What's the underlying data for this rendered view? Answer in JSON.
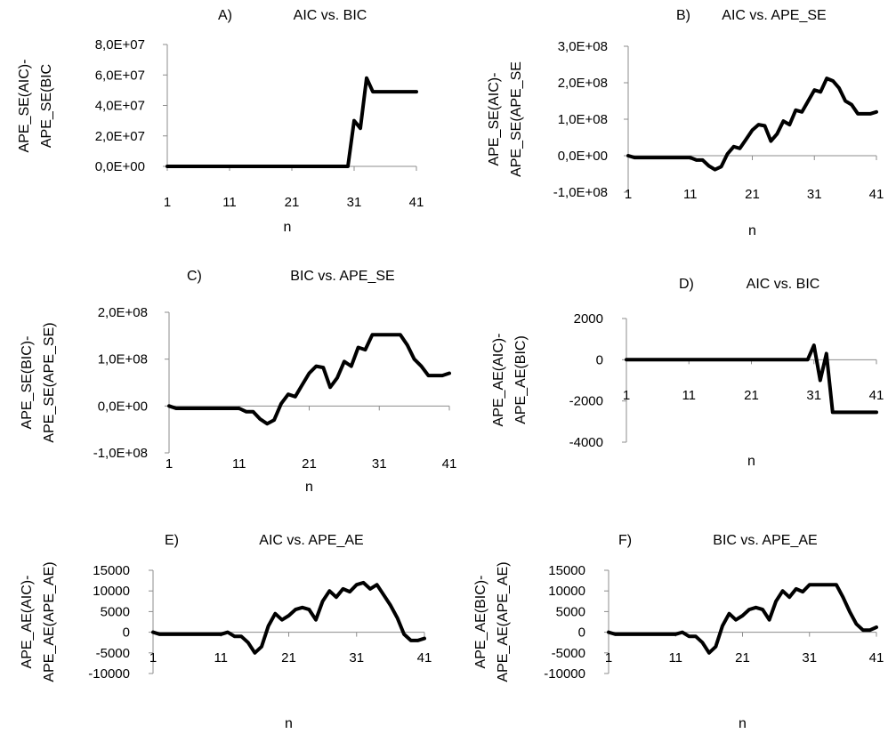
{
  "chart_data": [
    {
      "type": "line",
      "letter": "A)",
      "title": "AIC vs. BIC",
      "ylabel": [
        "APE_SE(AIC)-",
        "APE_SE(BIC"
      ],
      "xlabel": "n",
      "xticks": [
        "1",
        "11",
        "21",
        "31",
        "41"
      ],
      "yticks": [
        "8,0E+07",
        "6,0E+07",
        "4,0E+07",
        "2,0E+07",
        "0,0E+00"
      ],
      "ylim": [
        0,
        80000000
      ],
      "grid": false,
      "series": [
        {
          "values": [
            0,
            0,
            0,
            0,
            0,
            0,
            0,
            0,
            0,
            0,
            0,
            0,
            0,
            0,
            0,
            0,
            0,
            0,
            0,
            0,
            0,
            0,
            0,
            0,
            0,
            0,
            0,
            0,
            0,
            0,
            30000000,
            25000000,
            58000000,
            49000000,
            49000000,
            49000000,
            49000000,
            49000000,
            49000000,
            49000000,
            49000000
          ]
        }
      ]
    },
    {
      "type": "line",
      "letter": "B)",
      "title": "AIC vs. APE_SE",
      "ylabel": [
        "APE_SE(AIC)-",
        "APE_SE(APE_SE"
      ],
      "xlabel": "n",
      "xticks": [
        "1",
        "11",
        "21",
        "31",
        "41"
      ],
      "yticks": [
        "3,0E+08",
        "2,0E+08",
        "1,0E+08",
        "0,0E+00",
        "-1,0E+08"
      ],
      "ylim": [
        -100000000,
        300000000
      ],
      "grid": false,
      "series": [
        {
          "values": [
            0,
            -5000000,
            -5000000,
            -5000000,
            -5000000,
            -5000000,
            -5000000,
            -5000000,
            -5000000,
            -5000000,
            -5000000,
            -12000000,
            -12000000,
            -28000000,
            -38000000,
            -30000000,
            5000000,
            25000000,
            20000000,
            45000000,
            70000000,
            85000000,
            82000000,
            40000000,
            60000000,
            95000000,
            85000000,
            125000000,
            120000000,
            150000000,
            180000000,
            175000000,
            212000000,
            205000000,
            185000000,
            150000000,
            140000000,
            115000000,
            115000000,
            115000000,
            120000000
          ]
        }
      ]
    },
    {
      "type": "line",
      "letter": "C)",
      "title": "BIC vs. APE_SE",
      "ylabel": [
        "APE_SE(BIC)-",
        "APE_SE(APE_SE)"
      ],
      "xlabel": "n",
      "xticks": [
        "1",
        "11",
        "21",
        "31",
        "41"
      ],
      "yticks": [
        "2,0E+08",
        "1,0E+08",
        "0,0E+00",
        "-1,0E+08"
      ],
      "ylim": [
        -100000000,
        200000000
      ],
      "grid": false,
      "series": [
        {
          "values": [
            0,
            -5000000,
            -5000000,
            -5000000,
            -5000000,
            -5000000,
            -5000000,
            -5000000,
            -5000000,
            -5000000,
            -5000000,
            -12000000,
            -12000000,
            -28000000,
            -38000000,
            -30000000,
            5000000,
            25000000,
            20000000,
            45000000,
            70000000,
            85000000,
            82000000,
            40000000,
            60000000,
            95000000,
            85000000,
            125000000,
            120000000,
            152000000,
            152000000,
            152000000,
            152000000,
            152000000,
            130000000,
            100000000,
            85000000,
            65000000,
            65000000,
            65000000,
            70000000
          ]
        }
      ]
    },
    {
      "type": "line",
      "letter": "D)",
      "title": "AIC vs. BIC",
      "ylabel": [
        "APE_AE(AIC)-",
        "APE_AE(BIC)"
      ],
      "xlabel": "n",
      "xticks": [
        "1",
        "11",
        "21",
        "31",
        "41"
      ],
      "yticks": [
        "2000",
        "0",
        "-2000",
        "-4000"
      ],
      "ylim": [
        -4000,
        2000
      ],
      "grid": false,
      "series": [
        {
          "values": [
            0,
            0,
            0,
            0,
            0,
            0,
            0,
            0,
            0,
            0,
            0,
            0,
            0,
            0,
            0,
            0,
            0,
            0,
            0,
            0,
            0,
            0,
            0,
            0,
            0,
            0,
            0,
            0,
            0,
            0,
            700,
            -1000,
            300,
            -2550,
            -2550,
            -2550,
            -2550,
            -2550,
            -2550,
            -2550,
            -2550
          ]
        }
      ]
    },
    {
      "type": "line",
      "letter": "E)",
      "title": "AIC vs. APE_AE",
      "ylabel": [
        "APE_AE(AIC)-",
        "APE_AE(APE_AE)"
      ],
      "xlabel": "n",
      "xticks": [
        "1",
        "11",
        "21",
        "31",
        "41"
      ],
      "yticks": [
        "15000",
        "10000",
        "5000",
        "0",
        "-5000",
        "-10000"
      ],
      "ylim": [
        -10000,
        15000
      ],
      "grid": false,
      "series": [
        {
          "values": [
            0,
            -500,
            -500,
            -500,
            -500,
            -500,
            -500,
            -500,
            -500,
            -500,
            -500,
            0,
            -1000,
            -1000,
            -2500,
            -5000,
            -3500,
            1500,
            4500,
            3000,
            4000,
            5500,
            6000,
            5500,
            3000,
            7500,
            10000,
            8500,
            10500,
            9800,
            11500,
            12000,
            10500,
            11500,
            9000,
            6500,
            3500,
            -500,
            -2000,
            -2000,
            -1500
          ]
        }
      ]
    },
    {
      "type": "line",
      "letter": "F)",
      "title": "BIC vs. APE_AE",
      "ylabel": [
        "APE_AE(BIC)-",
        "APE_AE(APE_AE)"
      ],
      "xlabel": "n",
      "xticks": [
        "1",
        "11",
        "21",
        "31",
        "41"
      ],
      "yticks": [
        "15000",
        "10000",
        "5000",
        "0",
        "-5000",
        "-10000"
      ],
      "ylim": [
        -10000,
        15000
      ],
      "grid": false,
      "series": [
        {
          "values": [
            0,
            -500,
            -500,
            -500,
            -500,
            -500,
            -500,
            -500,
            -500,
            -500,
            -500,
            0,
            -1000,
            -1000,
            -2500,
            -5000,
            -3500,
            1500,
            4500,
            3000,
            4000,
            5500,
            6000,
            5500,
            3000,
            7500,
            10000,
            8500,
            10500,
            9800,
            11500,
            11500,
            11500,
            11500,
            11500,
            8500,
            5000,
            2000,
            500,
            500,
            1200
          ]
        }
      ]
    }
  ]
}
